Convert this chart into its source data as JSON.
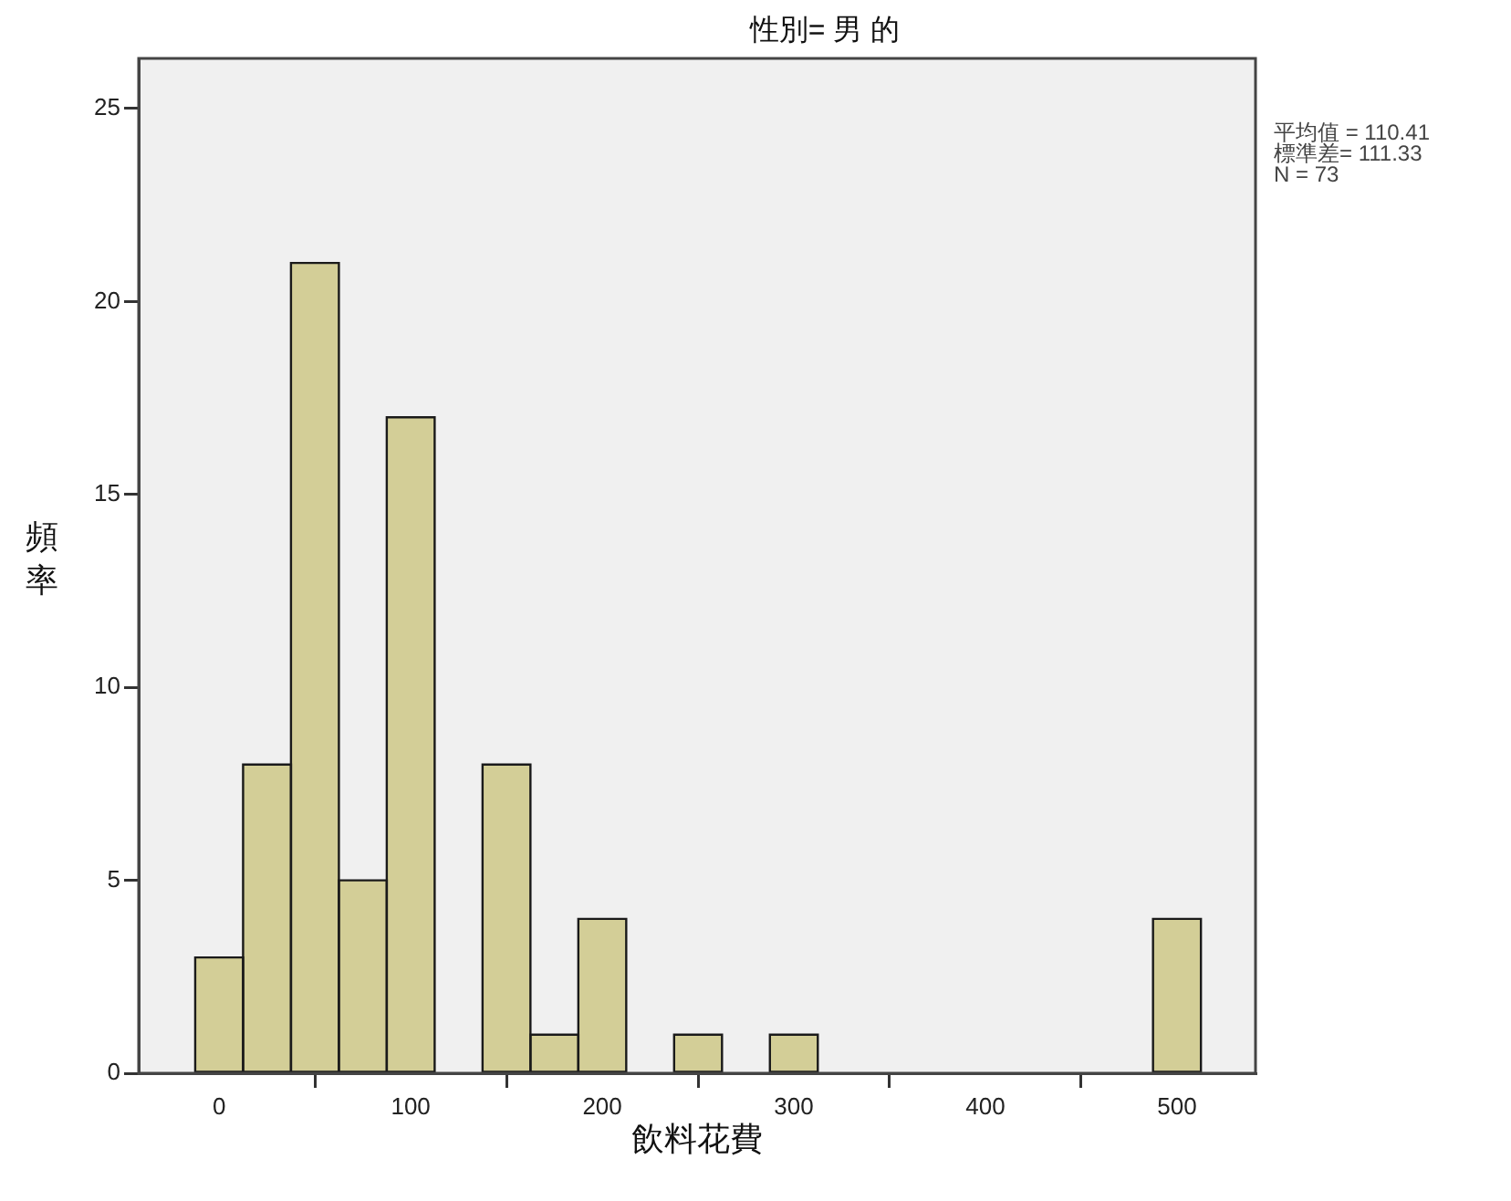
{
  "chart_data": {
    "type": "histogram",
    "title": "性別= 男 的",
    "xlabel": "飲料花費",
    "ylabel": "頻率",
    "bins": [
      -12.5,
      12.5,
      37.5,
      62.5,
      87.5,
      112.5,
      137.5,
      162.5,
      187.5,
      212.5,
      237.5,
      262.5,
      287.5,
      312.5,
      337.5,
      362.5,
      387.5,
      412.5,
      437.5,
      462.5,
      487.5,
      512.5
    ],
    "values": [
      3,
      8,
      21,
      5,
      17,
      0,
      8,
      1,
      4,
      0,
      1,
      0,
      1,
      0,
      0,
      0,
      0,
      0,
      0,
      0,
      4
    ],
    "color": "#d3ce97",
    "xlim": [
      -42,
      541
    ],
    "ylim": [
      0,
      26.3
    ],
    "xticks": [
      0,
      100,
      200,
      300,
      400,
      500
    ],
    "yticks": [
      0,
      5,
      10,
      15,
      20,
      25
    ],
    "grid": false,
    "annotations": [
      "平均值 = 110.41",
      "標準差= 111.33",
      "N = 73"
    ]
  }
}
